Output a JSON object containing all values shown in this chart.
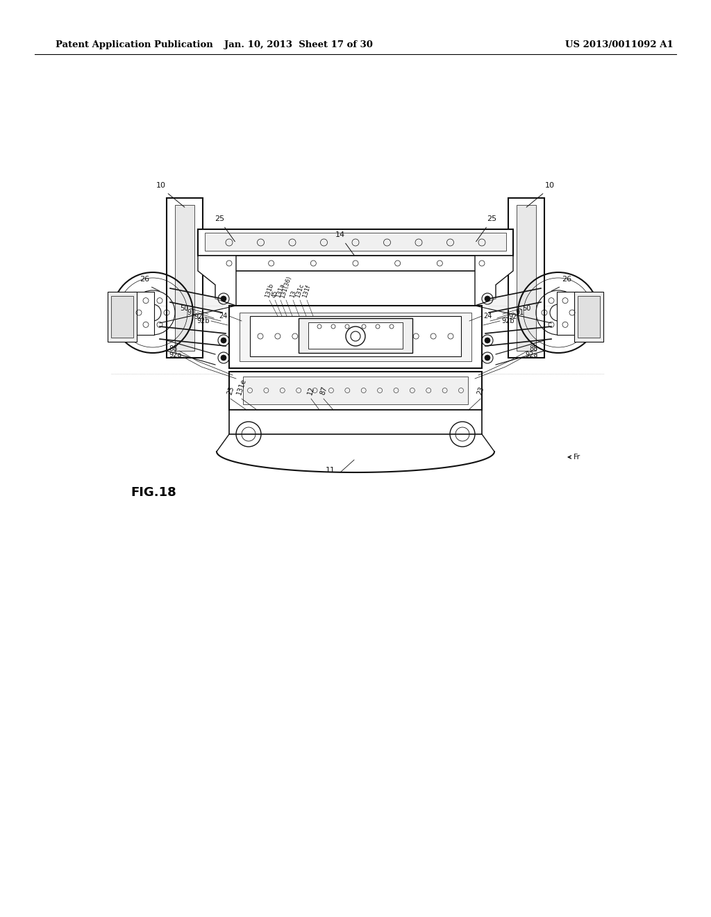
{
  "header_left": "Patent Application Publication",
  "header_center": "Jan. 10, 2013  Sheet 17 of 30",
  "header_right": "US 2013/0011092 A1",
  "background_color": "#ffffff",
  "text_color": "#000000",
  "figure_label": "FIG.18",
  "line_color": "#111111"
}
